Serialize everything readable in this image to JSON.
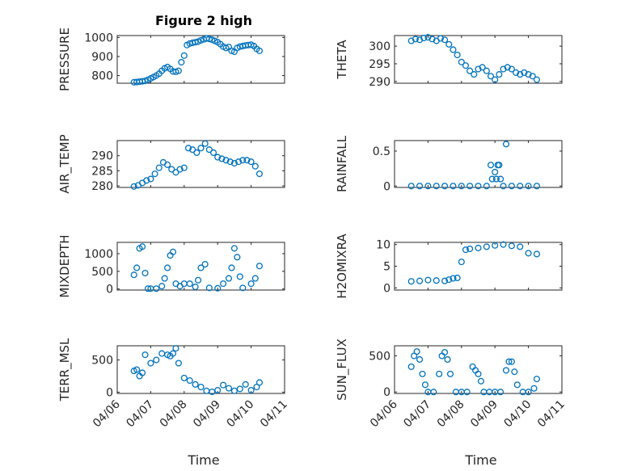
{
  "figure": {
    "title": "Figure 2 high",
    "xlabel": "Time",
    "marker_color": "#0072BD"
  },
  "x_ticks": [
    "04/06",
    "04/07",
    "04/08",
    "04/09",
    "04/10",
    "04/11"
  ],
  "chart_data": [
    {
      "type": "scatter",
      "ylabel": "PRESSURE",
      "ylim": [
        760,
        1010
      ],
      "yticks": [
        "800",
        "900",
        "1000"
      ],
      "grid": true,
      "x": [
        "04/06 12:00",
        "04/06 14:00",
        "04/06 16:00",
        "04/06 18:00",
        "04/06 20:00",
        "04/06 22:00",
        "04/07 00:00",
        "04/07 02:00",
        "04/07 04:00",
        "04/07 06:00",
        "04/07 08:00",
        "04/07 10:00",
        "04/07 12:00",
        "04/07 14:00",
        "04/07 16:00",
        "04/07 18:00",
        "04/07 20:00",
        "04/07 22:00",
        "04/08 00:00",
        "04/08 02:00",
        "04/08 04:00",
        "04/08 06:00",
        "04/08 08:00",
        "04/08 10:00",
        "04/08 12:00",
        "04/08 14:00",
        "04/08 16:00",
        "04/08 18:00",
        "04/08 20:00",
        "04/08 22:00",
        "04/09 00:00",
        "04/09 02:00",
        "04/09 04:00",
        "04/09 06:00",
        "04/09 08:00",
        "04/09 10:00",
        "04/09 12:00",
        "04/09 14:00",
        "04/09 16:00",
        "04/09 18:00",
        "04/09 20:00",
        "04/09 22:00",
        "04/10 00:00",
        "04/10 02:00",
        "04/10 04:00",
        "04/10 06:00"
      ],
      "y": [
        765,
        766,
        768,
        770,
        772,
        778,
        785,
        792,
        800,
        810,
        825,
        838,
        845,
        835,
        822,
        820,
        825,
        870,
        905,
        960,
        968,
        972,
        975,
        978,
        985,
        990,
        995,
        992,
        988,
        982,
        975,
        965,
        952,
        945,
        950,
        930,
        925,
        945,
        952,
        955,
        958,
        960,
        962,
        955,
        940,
        930
      ]
    },
    {
      "type": "scatter",
      "ylabel": "THETA",
      "ylim": [
        289.5,
        303
      ],
      "yticks": [
        "290",
        "295",
        "300"
      ],
      "grid": true,
      "x": [
        "04/06 12:00",
        "04/06 15:00",
        "04/06 18:00",
        "04/06 21:00",
        "04/07 00:00",
        "04/07 03:00",
        "04/07 06:00",
        "04/07 09:00",
        "04/07 12:00",
        "04/07 15:00",
        "04/07 18:00",
        "04/07 21:00",
        "04/08 00:00",
        "04/08 03:00",
        "04/08 06:00",
        "04/08 09:00",
        "04/08 12:00",
        "04/08 15:00",
        "04/08 18:00",
        "04/08 21:00",
        "04/09 00:00",
        "04/09 03:00",
        "04/09 06:00",
        "04/09 09:00",
        "04/09 12:00",
        "04/09 15:00",
        "04/09 18:00",
        "04/09 21:00",
        "04/10 00:00",
        "04/10 03:00",
        "04/10 06:00"
      ],
      "y": [
        301.5,
        302,
        301.8,
        302.3,
        302.5,
        302,
        301.5,
        302.2,
        301.8,
        300.5,
        299,
        297.5,
        295.5,
        294.5,
        293,
        292,
        293.5,
        294,
        293,
        291.5,
        290.5,
        292,
        293.5,
        294,
        293.5,
        292.5,
        292,
        292.5,
        292,
        291.5,
        290.5
      ]
    },
    {
      "type": "scatter",
      "ylabel": "AIR_TEMP",
      "ylim": [
        279.5,
        295
      ],
      "yticks": [
        "280",
        "285",
        "290"
      ],
      "grid": true,
      "x": [
        "04/06 12:00",
        "04/06 15:00",
        "04/06 18:00",
        "04/06 21:00",
        "04/07 00:00",
        "04/07 03:00",
        "04/07 06:00",
        "04/07 09:00",
        "04/07 12:00",
        "04/07 15:00",
        "04/07 18:00",
        "04/07 21:00",
        "04/08 00:00",
        "04/08 03:00",
        "04/08 06:00",
        "04/08 09:00",
        "04/08 12:00",
        "04/08 15:00",
        "04/08 18:00",
        "04/08 21:00",
        "04/09 00:00",
        "04/09 03:00",
        "04/09 06:00",
        "04/09 09:00",
        "04/09 12:00",
        "04/09 15:00",
        "04/09 18:00",
        "04/09 21:00",
        "04/10 00:00",
        "04/10 03:00",
        "04/10 06:00"
      ],
      "y": [
        279.8,
        280.2,
        281,
        281.8,
        282.3,
        284,
        286,
        287.8,
        287,
        285.5,
        284.5,
        285.5,
        286,
        292.5,
        292,
        291,
        292.5,
        294,
        292,
        291,
        289.5,
        289,
        288.5,
        288,
        287.5,
        288,
        288.5,
        288.5,
        288,
        286.5,
        284
      ]
    },
    {
      "type": "scatter",
      "ylabel": "RAINFALL",
      "ylim": [
        -0.02,
        0.65
      ],
      "yticks": [
        "0",
        "0.5"
      ],
      "grid": true,
      "x": [
        "04/06 12:00",
        "04/06 18:00",
        "04/07 00:00",
        "04/07 06:00",
        "04/07 12:00",
        "04/07 18:00",
        "04/08 00:00",
        "04/08 06:00",
        "04/08 12:00",
        "04/08 18:00",
        "04/08 21:00",
        "04/08 22:00",
        "04/09 00:00",
        "04/09 01:00",
        "04/09 02:00",
        "04/09 03:00",
        "04/09 04:00",
        "04/09 06:00",
        "04/09 08:00",
        "04/09 12:00",
        "04/09 18:00",
        "04/10 00:00",
        "04/10 06:00"
      ],
      "y": [
        0,
        0,
        0,
        0,
        0,
        0,
        0,
        0,
        0,
        0,
        0.3,
        0.1,
        0.2,
        0.1,
        0.3,
        0.3,
        0.1,
        0,
        0.6,
        0,
        0,
        0,
        0
      ]
    },
    {
      "type": "scatter",
      "ylabel": "MIXDEPTH",
      "ylim": [
        -30,
        1320
      ],
      "yticks": [
        "0",
        "500",
        "1000"
      ],
      "grid": true,
      "x": [
        "04/06 12:00",
        "04/06 14:00",
        "04/06 16:00",
        "04/06 18:00",
        "04/06 20:00",
        "04/06 22:00",
        "04/07 00:00",
        "04/07 04:00",
        "04/07 08:00",
        "04/07 10:00",
        "04/07 12:00",
        "04/07 14:00",
        "04/07 16:00",
        "04/07 18:00",
        "04/07 21:00",
        "04/08 00:00",
        "04/08 04:00",
        "04/08 08:00",
        "04/08 10:00",
        "04/08 12:00",
        "04/08 15:00",
        "04/08 18:00",
        "04/09 00:00",
        "04/09 04:00",
        "04/09 08:00",
        "04/09 10:00",
        "04/09 12:00",
        "04/09 14:00",
        "04/09 16:00",
        "04/09 18:00",
        "04/10 00:00",
        "04/10 03:00",
        "04/10 06:00"
      ],
      "y": [
        400,
        600,
        1150,
        1200,
        450,
        10,
        10,
        10,
        80,
        300,
        600,
        950,
        1050,
        150,
        80,
        150,
        150,
        60,
        250,
        600,
        700,
        30,
        20,
        150,
        300,
        600,
        1150,
        900,
        350,
        30,
        150,
        300,
        650
      ]
    },
    {
      "type": "scatter",
      "ylabel": "H2OMIXRA",
      "ylim": [
        -0.5,
        10.5
      ],
      "yticks": [
        "0",
        "5",
        "10"
      ],
      "grid": true,
      "x": [
        "04/06 12:00",
        "04/06 18:00",
        "04/07 00:00",
        "04/07 06:00",
        "04/07 12:00",
        "04/07 15:00",
        "04/07 18:00",
        "04/07 21:00",
        "04/08 00:00",
        "04/08 03:00",
        "04/08 06:00",
        "04/08 12:00",
        "04/08 18:00",
        "04/09 00:00",
        "04/09 06:00",
        "04/09 12:00",
        "04/09 18:00",
        "04/10 00:00",
        "04/10 06:00"
      ],
      "y": [
        1.5,
        1.6,
        1.8,
        1.7,
        1.6,
        1.9,
        2.2,
        2.3,
        6,
        8.8,
        9,
        9.2,
        9.5,
        9.8,
        10,
        9.7,
        9.5,
        8,
        7.8
      ]
    },
    {
      "type": "scatter",
      "ylabel": "TERR_MSL",
      "ylim": [
        -20,
        720
      ],
      "yticks": [
        "0",
        "500"
      ],
      "grid": true,
      "x": [
        "04/06 12:00",
        "04/06 14:00",
        "04/06 16:00",
        "04/06 18:00",
        "04/06 20:00",
        "04/07 00:00",
        "04/07 04:00",
        "04/07 08:00",
        "04/07 12:00",
        "04/07 14:00",
        "04/07 16:00",
        "04/07 18:00",
        "04/07 20:00",
        "04/08 00:00",
        "04/08 04:00",
        "04/08 08:00",
        "04/08 12:00",
        "04/08 16:00",
        "04/08 20:00",
        "04/09 00:00",
        "04/09 04:00",
        "04/09 08:00",
        "04/09 12:00",
        "04/09 16:00",
        "04/09 20:00",
        "04/10 00:00",
        "04/10 04:00",
        "04/10 06:00"
      ],
      "y": [
        330,
        350,
        250,
        300,
        580,
        450,
        500,
        600,
        580,
        560,
        600,
        680,
        450,
        220,
        180,
        120,
        80,
        20,
        5,
        30,
        110,
        60,
        20,
        50,
        120,
        30,
        80,
        150
      ]
    },
    {
      "type": "scatter",
      "ylabel": "SUN_FLUX",
      "ylim": [
        -20,
        640
      ],
      "yticks": [
        "0",
        "500"
      ],
      "grid": true,
      "x": [
        "04/06 12:00",
        "04/06 14:00",
        "04/06 16:00",
        "04/06 18:00",
        "04/06 20:00",
        "04/06 22:00",
        "04/07 00:00",
        "04/07 04:00",
        "04/07 08:00",
        "04/07 10:00",
        "04/07 12:00",
        "04/07 14:00",
        "04/07 16:00",
        "04/07 20:00",
        "04/08 00:00",
        "04/08 04:00",
        "04/08 08:00",
        "04/08 10:00",
        "04/08 12:00",
        "04/08 14:00",
        "04/08 16:00",
        "04/08 20:00",
        "04/09 00:00",
        "04/09 04:00",
        "04/09 08:00",
        "04/09 10:00",
        "04/09 12:00",
        "04/09 14:00",
        "04/09 16:00",
        "04/09 20:00",
        "04/10 00:00",
        "04/10 04:00",
        "04/10 06:00"
      ],
      "y": [
        350,
        500,
        560,
        450,
        250,
        100,
        0,
        0,
        250,
        500,
        550,
        450,
        250,
        0,
        0,
        0,
        350,
        300,
        250,
        150,
        0,
        0,
        0,
        0,
        300,
        420,
        420,
        280,
        100,
        0,
        0,
        50,
        180
      ]
    }
  ]
}
